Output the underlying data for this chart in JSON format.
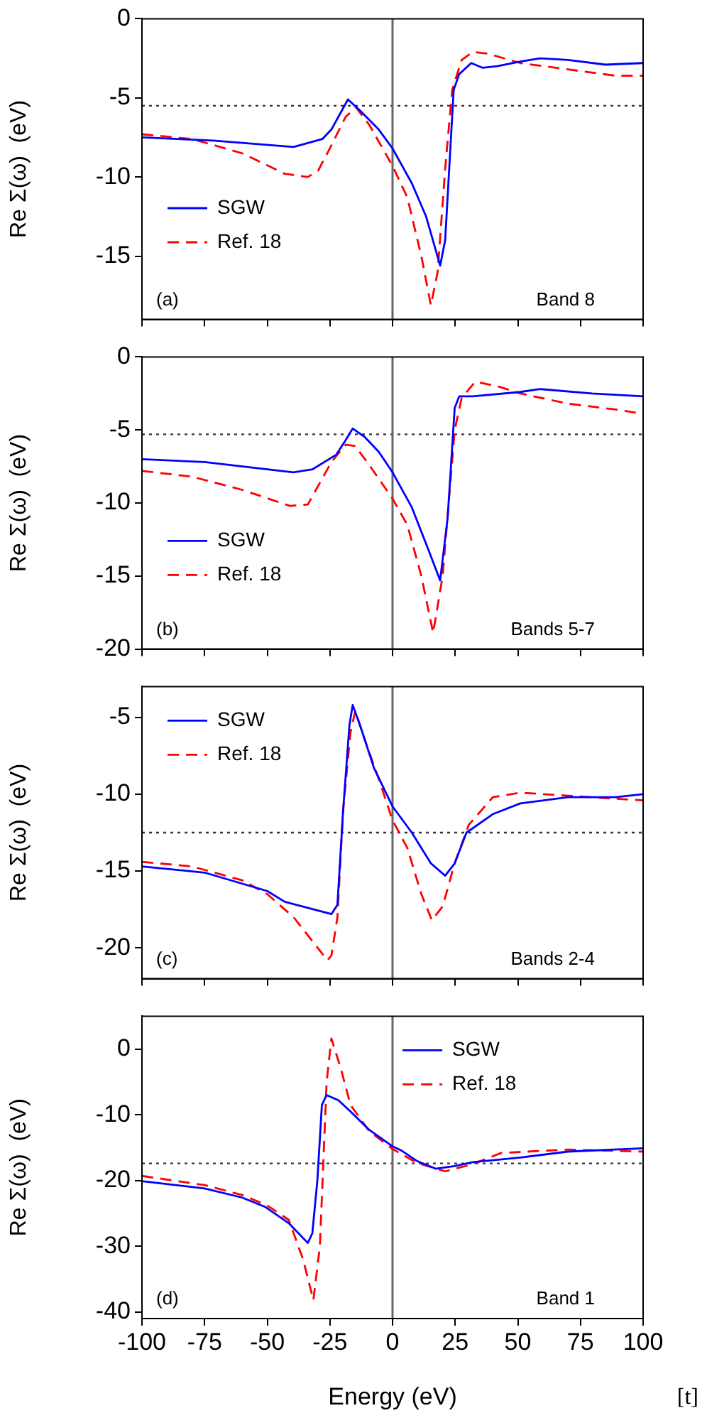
{
  "chart_data": [
    {
      "type": "line",
      "ylabel": "Re Σ(ω)  (eV)",
      "xlim": [
        -100,
        100
      ],
      "xticks": [
        -100,
        -75,
        -50,
        -25,
        0,
        25,
        50,
        75,
        100
      ],
      "ylim": [
        -19,
        0
      ],
      "yticks": [
        0,
        -5,
        -10,
        -15
      ],
      "tick_labels": "y",
      "legend": "left",
      "grid": false,
      "annotations": [
        "(a)",
        "Band 8"
      ],
      "ref_lines": [
        {
          "axis": "y",
          "value": -5.5,
          "color": "#333333",
          "line_style": "dotted"
        },
        {
          "axis": "x",
          "value": 0,
          "color": "#666666",
          "line_style": "solid"
        }
      ],
      "series": [
        {
          "name": "SGW",
          "color": "#0000ff",
          "line_style": "solid",
          "x": [
            -100,
            -71.6,
            -39.5,
            -28,
            -24.4,
            -17.8,
            -13,
            -5.5,
            0,
            7.7,
            13.4,
            19,
            21,
            24.4,
            26.6,
            31.4,
            36,
            41.8,
            51,
            58.8,
            70,
            85,
            100
          ],
          "values": [
            -7.5,
            -7.7,
            -8.1,
            -7.6,
            -7.0,
            -5.1,
            -5.8,
            -7.0,
            -8.2,
            -10.4,
            -12.5,
            -15.6,
            -14,
            -4.5,
            -3.5,
            -2.8,
            -3.1,
            -3.0,
            -2.7,
            -2.5,
            -2.6,
            -2.9,
            -2.8
          ]
        },
        {
          "name": "Ref. 18",
          "color": "#ff0000",
          "line_style": "dashed",
          "x": [
            -100,
            -80,
            -60,
            -43,
            -33.8,
            -29.7,
            -24.4,
            -18.7,
            -14.6,
            -9.3,
            0,
            5.9,
            11.5,
            15.3,
            18,
            21,
            23.8,
            27.6,
            32,
            38,
            51,
            70,
            89,
            100
          ],
          "values": [
            -7.3,
            -7.6,
            -8.5,
            -9.8,
            -10.0,
            -9.6,
            -8,
            -6.2,
            -5.6,
            -6.7,
            -9.3,
            -11.3,
            -15,
            -18.1,
            -16,
            -9.5,
            -4.5,
            -2.6,
            -2.1,
            -2.2,
            -2.8,
            -3.2,
            -3.6,
            -3.6
          ]
        }
      ]
    },
    {
      "type": "line",
      "ylabel": "Re Σ(ω)  (eV)",
      "xlim": [
        -100,
        100
      ],
      "xticks": [
        -100,
        -75,
        -50,
        -25,
        0,
        25,
        50,
        75,
        100
      ],
      "ylim": [
        -20,
        0
      ],
      "yticks": [
        0,
        -5,
        -10,
        -15,
        -20
      ],
      "tick_labels": "y",
      "legend": "left",
      "grid": false,
      "annotations": [
        "(b)",
        "Bands 5-7"
      ],
      "ref_lines": [
        {
          "axis": "y",
          "value": -5.3,
          "color": "#333333",
          "line_style": "dotted"
        },
        {
          "axis": "x",
          "value": 0,
          "color": "#666666",
          "line_style": "solid"
        }
      ],
      "series": [
        {
          "name": "SGW",
          "color": "#0000ff",
          "line_style": "solid",
          "x": [
            -100,
            -75,
            -50,
            -39.5,
            -32,
            -22.5,
            -18.7,
            -15.9,
            -11,
            -5.5,
            0,
            7.7,
            13.4,
            19,
            22,
            24.8,
            26.6,
            32,
            51,
            58.8,
            79.6,
            100
          ],
          "values": [
            -7.0,
            -7.2,
            -7.7,
            -7.9,
            -7.7,
            -6.7,
            -5.7,
            -4.9,
            -5.5,
            -6.5,
            -7.9,
            -10.3,
            -12.8,
            -15.3,
            -11,
            -3.5,
            -2.7,
            -2.7,
            -2.4,
            -2.2,
            -2.5,
            -2.7
          ]
        },
        {
          "name": "Ref. 18",
          "color": "#ff0000",
          "line_style": "dashed",
          "x": [
            -100,
            -80,
            -60,
            -41,
            -33.8,
            -24.4,
            -18.7,
            -14.9,
            -9.3,
            0,
            5.9,
            11.5,
            16.2,
            20,
            24.8,
            27.6,
            33,
            41.8,
            51,
            70,
            89,
            100
          ],
          "values": [
            -7.8,
            -8.2,
            -9.1,
            -10.2,
            -10.1,
            -7.2,
            -6.0,
            -6.1,
            -7.4,
            -9.7,
            -11.5,
            -15,
            -18.9,
            -15,
            -5,
            -2.8,
            -1.7,
            -2.0,
            -2.5,
            -3.2,
            -3.6,
            -3.9
          ]
        }
      ]
    },
    {
      "type": "line",
      "ylabel": "Re Σ(ω)  (eV)",
      "xlim": [
        -100,
        100
      ],
      "xticks": [
        -100,
        -75,
        -50,
        -25,
        0,
        25,
        50,
        75,
        100
      ],
      "ylim": [
        -22,
        -3
      ],
      "yticks": [
        -5,
        -10,
        -15,
        -20
      ],
      "tick_labels": "y",
      "legend": "top left",
      "grid": false,
      "annotations": [
        "(c)",
        "Bands 2-4"
      ],
      "ref_lines": [
        {
          "axis": "y",
          "value": -12.5,
          "color": "#333333",
          "line_style": "dotted"
        },
        {
          "axis": "x",
          "value": 0,
          "color": "#666666",
          "line_style": "solid"
        }
      ],
      "series": [
        {
          "name": "SGW",
          "color": "#0000ff",
          "line_style": "solid",
          "x": [
            -100,
            -75,
            -50,
            -43,
            -24.4,
            -22,
            -19.7,
            -17.2,
            -15.9,
            -13,
            -7.4,
            0,
            7.7,
            15.3,
            21,
            24.8,
            29.5,
            40,
            51,
            70,
            89,
            100
          ],
          "values": [
            -14.7,
            -15.1,
            -16.3,
            -17.0,
            -17.8,
            -17.2,
            -11,
            -5.5,
            -4.2,
            -5.5,
            -8.3,
            -10.8,
            -12.5,
            -14.5,
            -15.3,
            -14.5,
            -12.5,
            -11.3,
            -10.6,
            -10.2,
            -10.2,
            -10.0
          ]
        },
        {
          "name": "Ref. 18",
          "color": "#ff0000",
          "line_style": "dashed",
          "x": [
            -100,
            -80,
            -60,
            -50,
            -39.5,
            -26,
            -24.4,
            -22,
            -19.7,
            -16.8,
            -14.9,
            -11,
            -5.5,
            0,
            5.9,
            11.5,
            15.7,
            20,
            24.8,
            30.4,
            40,
            51,
            70,
            89,
            100
          ],
          "values": [
            -14.4,
            -14.7,
            -15.6,
            -16.5,
            -18.0,
            -20.8,
            -20.5,
            -18,
            -11,
            -6,
            -4.6,
            -6.5,
            -9.0,
            -11.7,
            -13.5,
            -16.5,
            -18.2,
            -17.3,
            -14.5,
            -12.0,
            -10.2,
            -9.9,
            -10.1,
            -10.3,
            -10.4
          ]
        }
      ]
    },
    {
      "type": "line",
      "xlabel": "Energy (eV)",
      "ylabel": "Re Σ(ω)  (eV)",
      "xlim": [
        -100,
        100
      ],
      "xticks": [
        -100,
        -75,
        -50,
        -25,
        0,
        25,
        50,
        75,
        100
      ],
      "ylim": [
        -41,
        5
      ],
      "yticks": [
        0,
        -10,
        -20,
        -30,
        -40
      ],
      "legend": "top right",
      "grid": false,
      "annotations": [
        "(d)",
        "Band 1",
        "[t]"
      ],
      "ref_lines": [
        {
          "axis": "y",
          "value": -17.4,
          "color": "#333333",
          "line_style": "dotted"
        },
        {
          "axis": "x",
          "value": 0,
          "color": "#666666",
          "line_style": "solid"
        }
      ],
      "series": [
        {
          "name": "SGW",
          "color": "#0000ff",
          "line_style": "solid",
          "x": [
            -100,
            -75,
            -60,
            -50.9,
            -41.4,
            -33.8,
            -32,
            -30,
            -28.2,
            -26.3,
            -21.6,
            -16.8,
            -9.3,
            0,
            3.8,
            9.6,
            17.2,
            24.8,
            32,
            51,
            70,
            100
          ],
          "values": [
            -20.1,
            -21.2,
            -22.6,
            -24,
            -26.5,
            -29.5,
            -28,
            -20,
            -8.5,
            -7.0,
            -7.8,
            -9.5,
            -12.3,
            -14.8,
            -15.5,
            -17.0,
            -18.2,
            -17.8,
            -17.2,
            -16.5,
            -15.6,
            -15.1
          ]
        },
        {
          "name": "Ref. 18",
          "color": "#ff0000",
          "line_style": "dashed",
          "x": [
            -100,
            -75,
            -60,
            -50,
            -41.4,
            -35.7,
            -31.6,
            -29,
            -26.3,
            -24.4,
            -20.6,
            -16.8,
            -9.3,
            0,
            9.6,
            21,
            32,
            43.4,
            70,
            100
          ],
          "values": [
            -19.3,
            -20.7,
            -22.2,
            -23.8,
            -26,
            -32,
            -38.2,
            -30,
            -5,
            1.6,
            -3,
            -8.5,
            -12.5,
            -15.2,
            -17.3,
            -18.6,
            -17.5,
            -15.8,
            -15.3,
            -15.6
          ]
        }
      ]
    }
  ]
}
